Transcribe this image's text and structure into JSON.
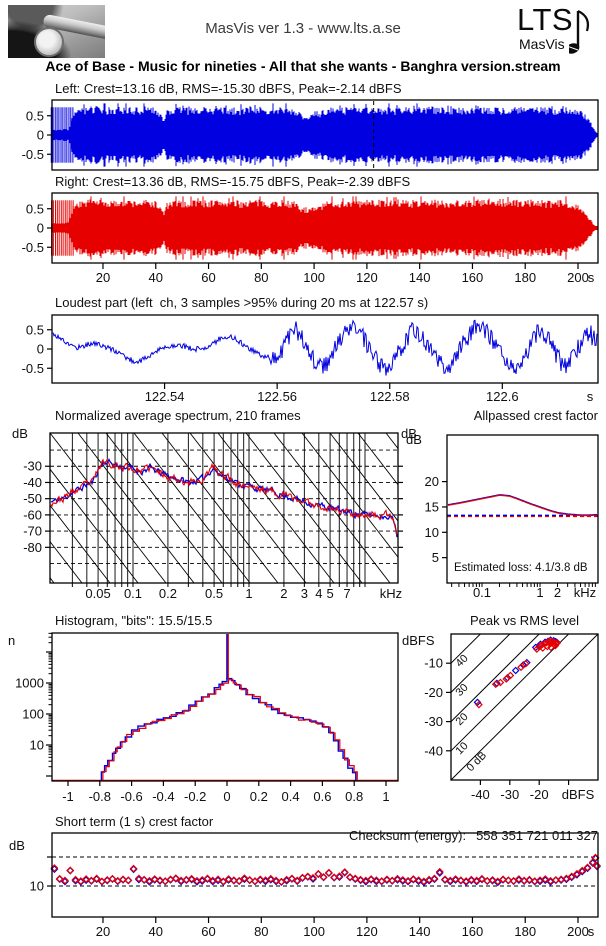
{
  "window": {
    "header": "MasVis ver 1.3 - www.lts.a.se",
    "logo_main": "LTS",
    "logo_sub": "MasVis",
    "title": "Ace of Base - Music for nineties - All that she wants - Banghra version.stream"
  },
  "colors": {
    "blue": "#0000e0",
    "red": "#e60000",
    "axis": "#000000",
    "bg": "#ffffff"
  },
  "labels": {
    "db": "dB",
    "dbfs": "dBFS",
    "n": "n",
    "khz": "kHz",
    "s": "s",
    "checksum_label": "Checksum (energy):",
    "checksum_value": "558 351 721 011 327"
  },
  "chart_data": [
    {
      "id": "wave_left",
      "type": "area",
      "title": "Left: Crest=13.16 dB, RMS=-15.30 dBFS, Peak=-2.14 dBFS",
      "channel": "left",
      "color": "blue",
      "ylim": [
        -0.85,
        0.85
      ],
      "yticks": [
        0.5,
        0,
        -0.5
      ],
      "xlim_s": [
        0,
        207
      ],
      "cursor_s": 122.57,
      "envelope_t": [
        0,
        1,
        3,
        5,
        7,
        9,
        12,
        16,
        20,
        24,
        28,
        32,
        36,
        40,
        42,
        43,
        44,
        48,
        52,
        56,
        60,
        64,
        68,
        72,
        76,
        80,
        84,
        88,
        92,
        95,
        98,
        101,
        104,
        107,
        110,
        114,
        118,
        122,
        126,
        130,
        134,
        138,
        142,
        146,
        150,
        154,
        158,
        162,
        166,
        170,
        174,
        178,
        182,
        186,
        190,
        194,
        197,
        199,
        201,
        203,
        205,
        206,
        207
      ],
      "envelope_a": [
        0.1,
        0.12,
        0.13,
        0.14,
        0.15,
        0.62,
        0.66,
        0.7,
        0.68,
        0.66,
        0.7,
        0.67,
        0.69,
        0.66,
        0.5,
        0.38,
        0.6,
        0.68,
        0.66,
        0.7,
        0.67,
        0.69,
        0.68,
        0.66,
        0.7,
        0.68,
        0.67,
        0.69,
        0.66,
        0.52,
        0.48,
        0.52,
        0.62,
        0.68,
        0.66,
        0.69,
        0.67,
        0.7,
        0.68,
        0.66,
        0.69,
        0.67,
        0.7,
        0.68,
        0.66,
        0.69,
        0.67,
        0.7,
        0.68,
        0.66,
        0.69,
        0.67,
        0.7,
        0.68,
        0.66,
        0.69,
        0.67,
        0.64,
        0.6,
        0.5,
        0.3,
        0.16,
        0.06
      ],
      "intro_spikes_s": [
        0.4,
        1.1,
        1.9,
        2.6,
        3.3,
        4.1,
        4.8,
        5.6,
        6.3,
        7.1,
        7.8,
        8.6
      ],
      "spike_amp": 0.72
    },
    {
      "id": "wave_right",
      "type": "area",
      "title": "Right: Crest=13.36 dB, RMS=-15.75 dBFS, Peak=-2.39 dBFS",
      "channel": "right",
      "color": "red",
      "ylim": [
        -0.85,
        0.85
      ],
      "yticks": [
        0.5,
        0,
        -0.5
      ],
      "xlim_s": [
        0,
        207
      ],
      "xticks_s": [
        20,
        40,
        60,
        80,
        100,
        120,
        140,
        160,
        180,
        200
      ],
      "unit": "s",
      "envelope_t": [
        0,
        1,
        3,
        5,
        7,
        9,
        12,
        16,
        20,
        24,
        28,
        32,
        36,
        40,
        42,
        43,
        44,
        48,
        52,
        56,
        60,
        64,
        68,
        72,
        76,
        80,
        84,
        88,
        92,
        95,
        98,
        101,
        104,
        107,
        110,
        114,
        118,
        122,
        126,
        130,
        134,
        138,
        142,
        146,
        150,
        154,
        158,
        162,
        166,
        170,
        174,
        178,
        182,
        186,
        190,
        194,
        197,
        199,
        201,
        203,
        205,
        206,
        207
      ],
      "envelope_a": [
        0.1,
        0.12,
        0.13,
        0.14,
        0.15,
        0.62,
        0.66,
        0.7,
        0.68,
        0.66,
        0.7,
        0.67,
        0.69,
        0.66,
        0.5,
        0.38,
        0.6,
        0.68,
        0.66,
        0.7,
        0.67,
        0.69,
        0.68,
        0.66,
        0.7,
        0.68,
        0.67,
        0.69,
        0.66,
        0.52,
        0.48,
        0.52,
        0.62,
        0.68,
        0.66,
        0.69,
        0.67,
        0.7,
        0.68,
        0.66,
        0.69,
        0.67,
        0.7,
        0.68,
        0.66,
        0.69,
        0.67,
        0.7,
        0.68,
        0.66,
        0.69,
        0.67,
        0.7,
        0.68,
        0.65,
        0.68,
        0.65,
        0.61,
        0.52,
        0.34,
        0.18,
        0.08,
        0.05
      ],
      "intro_spikes_s": [
        0.5,
        1.2,
        2.0,
        2.7,
        3.4,
        4.2,
        4.9,
        5.7,
        6.4,
        7.2,
        7.9,
        8.7
      ],
      "spike_amp": 0.72
    },
    {
      "id": "loudest",
      "type": "line",
      "title": "Loudest part (left  ch, 3 samples >95% during 20 ms at 122.57 s)",
      "color": "blue",
      "ylim": [
        -0.85,
        0.85
      ],
      "yticks": [
        0.5,
        0,
        -0.5
      ],
      "xlim_s": [
        122.52,
        122.617
      ],
      "xticks": [
        122.54,
        122.56,
        122.58,
        122.6
      ],
      "unit": "s",
      "points": [
        0.42,
        0.28,
        0.12,
        0.04,
        0.1,
        0.16,
        0.08,
        0.0,
        -0.1,
        -0.24,
        -0.34,
        -0.26,
        -0.12,
        0.0,
        0.08,
        0.12,
        0.06,
        -0.02,
        0.04,
        0.1,
        0.28,
        0.34,
        0.24,
        0.08,
        -0.06,
        -0.16,
        -0.24,
        -0.18,
        0.3,
        0.52,
        0.2,
        -0.22,
        -0.5,
        -0.3,
        0.12,
        0.44,
        0.62,
        0.3,
        -0.12,
        -0.42,
        -0.62,
        -0.22,
        0.22,
        0.52,
        0.32,
        0.02,
        -0.32,
        -0.56,
        -0.26,
        0.16,
        0.46,
        0.66,
        0.36,
        0.02,
        -0.36,
        -0.6,
        -0.3,
        0.12,
        0.5,
        0.26,
        -0.16,
        -0.46,
        -0.22,
        0.2,
        0.42,
        0.12
      ],
      "noise": [
        0.07,
        0.24
      ],
      "split": 0.4
    },
    {
      "id": "spectrum",
      "type": "line",
      "title": "Normalized average spectrum, 210 frames",
      "ylabel": "dB",
      "unit": "kHz",
      "xlim_khz": [
        0.02,
        19.3
      ],
      "ylim_db": [
        -102,
        -9.5
      ],
      "yticks": [
        -30,
        -40,
        -50,
        -60,
        -70,
        -80
      ],
      "grid_dashed_db": [
        -20,
        -30,
        -40,
        -50,
        -60,
        -70,
        -80,
        -90
      ],
      "xtick_labels": [
        "0.05",
        "0.1",
        "0.2",
        "0.5",
        "1",
        "2",
        "3",
        "4",
        "5",
        "7"
      ],
      "xtick_f": [
        0.05,
        0.1,
        0.2,
        0.5,
        1,
        2,
        3,
        4,
        5,
        7
      ],
      "freq_khz": [
        0.02,
        0.025,
        0.03,
        0.035,
        0.04,
        0.045,
        0.05,
        0.055,
        0.06,
        0.07,
        0.08,
        0.09,
        0.1,
        0.12,
        0.14,
        0.17,
        0.2,
        0.25,
        0.3,
        0.4,
        0.5,
        0.55,
        0.6,
        0.7,
        0.8,
        1.0,
        1.2,
        1.5,
        2.0,
        2.5,
        3.0,
        4.0,
        5.0,
        6.0,
        7.0,
        8.0,
        10.0,
        12.0,
        14.0,
        16.0,
        17.5,
        18.5,
        19.0,
        19.3
      ],
      "db": [
        -52,
        -50,
        -46,
        -44,
        -41,
        -40,
        -32,
        -28,
        -27,
        -29,
        -31,
        -30,
        -32,
        -33,
        -31,
        -34,
        -36,
        -38,
        -40,
        -38,
        -30,
        -36,
        -35,
        -38,
        -41,
        -42,
        -44,
        -45,
        -48,
        -50,
        -52,
        -54,
        -56,
        -57,
        -58,
        -59,
        -60,
        -60,
        -61,
        -60,
        -63,
        -68,
        -74,
        -81
      ]
    },
    {
      "id": "allpassed",
      "type": "line",
      "title": "Allpassed crest factor",
      "ylabel": "dB",
      "unit": "kHz",
      "ylim_db": [
        0,
        29.2
      ],
      "yticks": [
        20,
        15,
        10,
        5
      ],
      "xtick_labels": [
        "0.1",
        "1",
        "2"
      ],
      "xtick_f": [
        0.1,
        1,
        2
      ],
      "dashed_level_db": 13.2,
      "note": "Estimated loss: 4.1/3.8 dB",
      "freq_khz": [
        0.025,
        0.04,
        0.06,
        0.1,
        0.15,
        0.2,
        0.3,
        0.4,
        0.6,
        1,
        1.5,
        2,
        3,
        5,
        7,
        10
      ],
      "crest_db": [
        15.3,
        15.7,
        16.1,
        16.6,
        17.0,
        17.3,
        17.1,
        16.6,
        15.8,
        14.9,
        14.2,
        13.8,
        13.5,
        13.3,
        13.3,
        13.4
      ]
    },
    {
      "id": "histogram",
      "type": "bar",
      "title": "Histogram, \"bits\": 15.5/15.5",
      "ylabel": "n",
      "yticks": [
        1000,
        100,
        10
      ],
      "xtick_labels": [
        "-1",
        "-0.8",
        "-0.6",
        "-0.4",
        "-0.2",
        "0",
        "0.2",
        "0.4",
        "0.6",
        "0.8",
        "1"
      ],
      "xtick_v": [
        -1,
        -0.8,
        -0.6,
        -0.4,
        -0.2,
        0,
        0.2,
        0.4,
        0.6,
        0.8,
        1
      ],
      "bins_x": [
        -0.79,
        -0.77,
        -0.75,
        -0.72,
        -0.7,
        -0.67,
        -0.64,
        -0.6,
        -0.56,
        -0.52,
        -0.48,
        -0.44,
        -0.4,
        -0.36,
        -0.32,
        -0.28,
        -0.24,
        -0.2,
        -0.16,
        -0.12,
        -0.08,
        -0.05,
        -0.03,
        0.0,
        0.03,
        0.05,
        0.08,
        0.12,
        0.16,
        0.2,
        0.24,
        0.28,
        0.32,
        0.36,
        0.4,
        0.44,
        0.48,
        0.52,
        0.56,
        0.6,
        0.64,
        0.67,
        0.7,
        0.73,
        0.76,
        0.79,
        0.81
      ],
      "counts": [
        1.3,
        2,
        3,
        6,
        8,
        13,
        20,
        28,
        38,
        46,
        54,
        64,
        74,
        86,
        105,
        140,
        185,
        245,
        330,
        460,
        650,
        850,
        1050,
        1300,
        1080,
        860,
        640,
        470,
        340,
        250,
        190,
        145,
        110,
        88,
        76,
        68,
        62,
        55,
        47,
        40,
        26,
        14,
        7,
        3.5,
        2,
        1.3,
        1
      ],
      "spike_x": 0,
      "spike_n": 40000
    },
    {
      "id": "peak_rms",
      "type": "scatter",
      "title": "Peak vs RMS level",
      "xlabel": "dBFS",
      "ylabel": "dBFS",
      "xlim": [
        -50,
        0
      ],
      "ylim": [
        -50,
        0
      ],
      "xticks": [
        -40,
        -30,
        -20,
        -10
      ],
      "xtick_labels": [
        "-40",
        "-30",
        "-20"
      ],
      "yticks": [
        -10,
        -20,
        -30,
        -40
      ],
      "diagonals_db": [
        40,
        30,
        20,
        10,
        0
      ],
      "diag_labels": [
        "40",
        "30",
        "20",
        "10",
        "0 dB"
      ],
      "red_points": [
        [
          -16.5,
          -2.4
        ],
        [
          -15.5,
          -2.6
        ],
        [
          -14.8,
          -2.9
        ],
        [
          -14.2,
          -3.3
        ],
        [
          -15.0,
          -3.6
        ],
        [
          -15.8,
          -3.1
        ],
        [
          -16.8,
          -2.8
        ],
        [
          -17.5,
          -3.0
        ],
        [
          -18.3,
          -3.4
        ],
        [
          -19.2,
          -3.8
        ],
        [
          -20.0,
          -4.4
        ],
        [
          -18.8,
          -4.8
        ],
        [
          -17.2,
          -4.3
        ],
        [
          -16.0,
          -4.6
        ],
        [
          -14.5,
          -4.0
        ],
        [
          -13.8,
          -3.0
        ],
        [
          -20.8,
          -5.2
        ],
        [
          -24.6,
          -10.2
        ],
        [
          -26.2,
          -11.4
        ],
        [
          -29.8,
          -14.2
        ],
        [
          -31.2,
          -15.4
        ],
        [
          -33.2,
          -16.6
        ],
        [
          -34.8,
          -17.2
        ],
        [
          -40.5,
          -24.2
        ]
      ],
      "blue_points": [
        [
          -16.1,
          -2.1
        ],
        [
          -15.1,
          -2.3
        ],
        [
          -14.4,
          -2.6
        ],
        [
          -17.0,
          -2.5
        ],
        [
          -18.0,
          -2.8
        ],
        [
          -19.6,
          -3.5
        ],
        [
          -21.2,
          -4.6
        ],
        [
          -24.2,
          -9.8
        ],
        [
          -28.0,
          -12.5
        ],
        [
          -30.8,
          -15.0
        ],
        [
          -34.4,
          -16.9
        ],
        [
          -41.0,
          -23.4
        ],
        [
          -25.4,
          -10.6
        ]
      ]
    },
    {
      "id": "shortterm",
      "type": "scatter",
      "title": "Short term (1 s) crest factor",
      "ylabel": "dB",
      "ytick_labeled": [
        10
      ],
      "yticks": [
        10,
        20
      ],
      "dashed_db": [
        10,
        20
      ],
      "xticks_s": [
        20,
        40,
        60,
        80,
        100,
        120,
        140,
        160,
        180,
        200
      ],
      "unit": "s",
      "t_start": 1.6,
      "t_step": 2.0,
      "crest_db": [
        16.2,
        12.5,
        11.9,
        15.4,
        12.2,
        11.7,
        12.4,
        11.9,
        12.6,
        11.6,
        12.1,
        12.5,
        11.8,
        12.3,
        12.0,
        16.0,
        12.6,
        12.2,
        11.8,
        12.4,
        12.0,
        11.7,
        12.3,
        12.7,
        11.9,
        12.2,
        12.5,
        11.8,
        12.1,
        12.6,
        11.9,
        12.3,
        11.6,
        12.4,
        12.0,
        11.8,
        12.7,
        12.1,
        11.7,
        12.3,
        12.0,
        12.5,
        11.9,
        11.5,
        12.2,
        12.6,
        11.9,
        12.9,
        13.3,
        12.8,
        14.2,
        13.1,
        14.6,
        13.0,
        13.4,
        14.8,
        13.1,
        12.6,
        12.2,
        11.9,
        12.4,
        12.0,
        11.7,
        12.3,
        11.9,
        12.5,
        12.1,
        11.8,
        12.4,
        12.0,
        11.6,
        12.2,
        12.6,
        14.9,
        12.3,
        11.9,
        12.4,
        12.0,
        11.7,
        12.2,
        11.9,
        12.5,
        11.8,
        12.1,
        11.6,
        12.3,
        12.0,
        11.8,
        12.4,
        11.9,
        12.2,
        11.7,
        12.0,
        12.4,
        11.8,
        12.1,
        12.3,
        12.6,
        13.3,
        14.2,
        15.3,
        16.4,
        18.2
      ],
      "extra_points": [
        [
          206.6,
          19.8
        ],
        [
          207.2,
          17.0
        ]
      ],
      "blue_offset_db": -0.25
    }
  ]
}
